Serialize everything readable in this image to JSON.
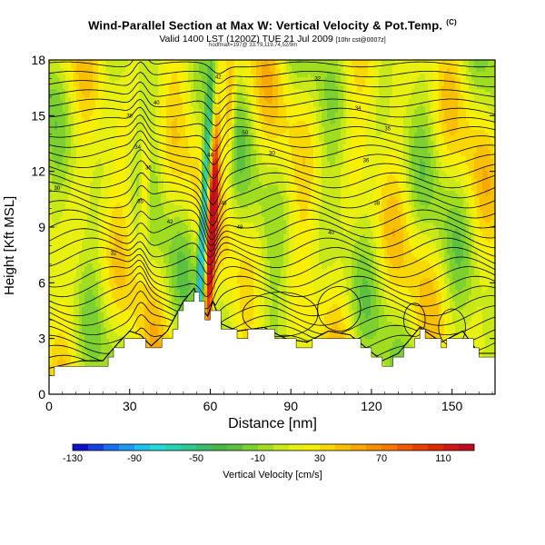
{
  "header": {
    "title": "Wind-Parallel Section at Max W: Vertical Velocity & Pot.Temp.",
    "title_mark": "(C)",
    "subtitle_main": "Valid 1400 LST (1200Z) TUE 21 Jul 2009",
    "subtitle_small": "[10hr cst@0007z]",
    "credit": "hodfmax=197@ 33.79,119.74,52/9m"
  },
  "chart_data": {
    "type": "heatmap",
    "title": "Wind-Parallel Section at Max W: Vertical Velocity & Pot.Temp.",
    "xlabel": "Distance [nm]",
    "ylabel": "Height [Kft MSL]",
    "xlim": [
      0,
      166
    ],
    "ylim": [
      0,
      18
    ],
    "xticks": [
      0,
      30,
      60,
      90,
      120,
      150
    ],
    "yticks": [
      0,
      3,
      6,
      9,
      12,
      15,
      18
    ],
    "colorbar": {
      "label": "Vertical Velocity [cm/s]",
      "tick_labels": [
        -130,
        -90,
        -50,
        -10,
        30,
        70,
        110
      ],
      "levels": [
        -130,
        -120,
        -110,
        -100,
        -90,
        -80,
        -70,
        -60,
        -50,
        -40,
        -30,
        -20,
        -10,
        0,
        10,
        20,
        30,
        40,
        50,
        60,
        70,
        80,
        90,
        100,
        110,
        120,
        130
      ],
      "colors": [
        "#1010c8",
        "#1640e0",
        "#1a6ef0",
        "#1e9af5",
        "#20c0f0",
        "#22d8d8",
        "#28d4b0",
        "#30c890",
        "#3cbc6e",
        "#48b848",
        "#5cc040",
        "#7cd030",
        "#a0dc20",
        "#c8e818",
        "#e8f010",
        "#f8f000",
        "#f8d800",
        "#f8c000",
        "#f8a800",
        "#f89000",
        "#f87800",
        "#f05a00",
        "#e84000",
        "#e02800",
        "#d01818",
        "#c00c20"
      ]
    },
    "terrain": [
      {
        "x": 0,
        "y": 1.2
      },
      {
        "x": 12,
        "y": 1.6
      },
      {
        "x": 20,
        "y": 1.6
      },
      {
        "x": 26,
        "y": 2.6
      },
      {
        "x": 30,
        "y": 3.2
      },
      {
        "x": 34,
        "y": 3.0
      },
      {
        "x": 38,
        "y": 2.4
      },
      {
        "x": 44,
        "y": 3.2
      },
      {
        "x": 50,
        "y": 4.8
      },
      {
        "x": 54,
        "y": 5.5
      },
      {
        "x": 57,
        "y": 4.4
      },
      {
        "x": 59,
        "y": 4.0
      },
      {
        "x": 61,
        "y": 4.8
      },
      {
        "x": 64,
        "y": 3.6
      },
      {
        "x": 70,
        "y": 3.2
      },
      {
        "x": 80,
        "y": 3.4
      },
      {
        "x": 88,
        "y": 2.8
      },
      {
        "x": 96,
        "y": 2.6
      },
      {
        "x": 104,
        "y": 3.2
      },
      {
        "x": 112,
        "y": 3.0
      },
      {
        "x": 124,
        "y": 1.6
      },
      {
        "x": 130,
        "y": 2.0
      },
      {
        "x": 138,
        "y": 3.4
      },
      {
        "x": 146,
        "y": 2.6
      },
      {
        "x": 154,
        "y": 3.2
      },
      {
        "x": 160,
        "y": 2.0
      },
      {
        "x": 166,
        "y": 2.0
      }
    ],
    "updraft_core": {
      "x_bottom": 56,
      "x_top": 62,
      "max_w": 120,
      "min_w": -130
    },
    "isentrope_labels": [
      "30",
      "32",
      "34",
      "35",
      "36",
      "38",
      "40",
      "42",
      "44",
      "46",
      "48",
      "50"
    ]
  }
}
